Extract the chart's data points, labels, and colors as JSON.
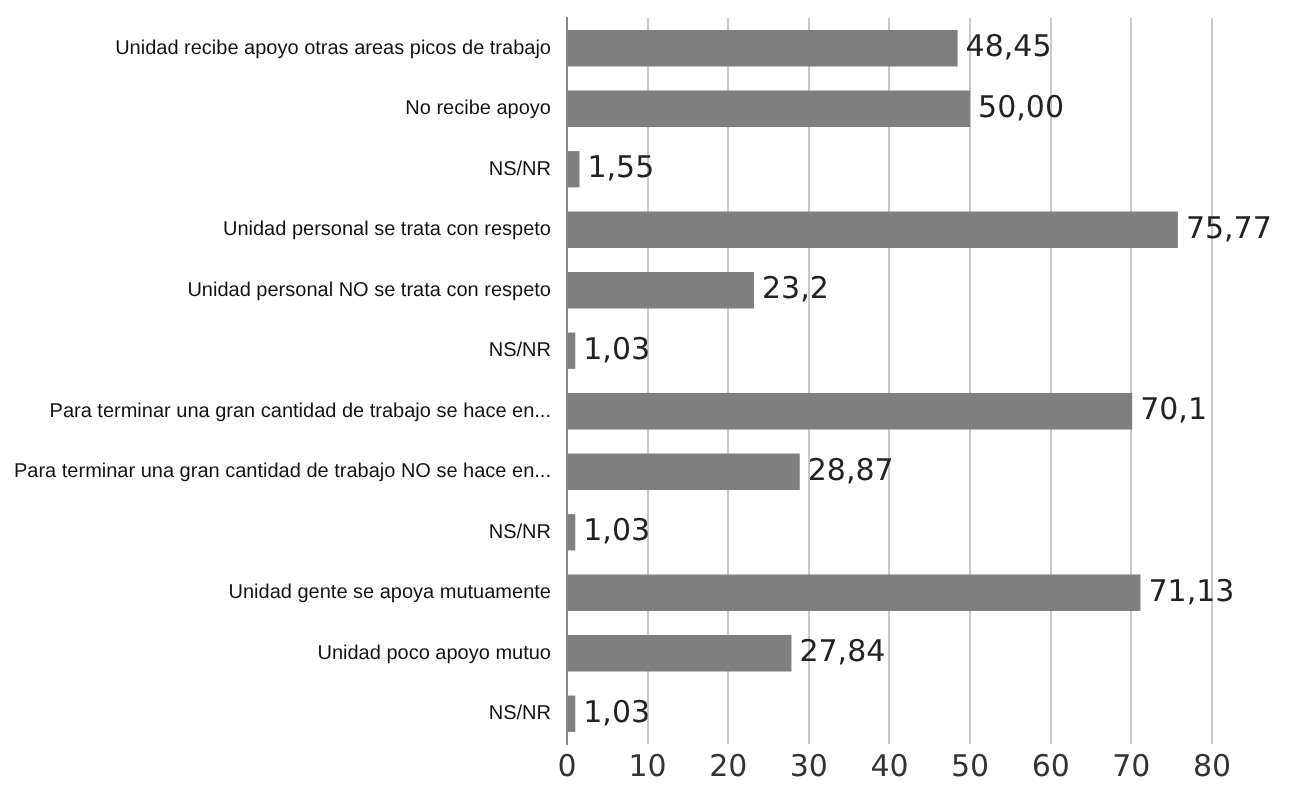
{
  "chart_data": {
    "type": "bar",
    "orientation": "horizontal",
    "categories": [
      "Unidad recibe apoyo otras areas picos de trabajo",
      "No recibe apoyo",
      "NS/NR",
      "Unidad personal se trata con respeto",
      "Unidad personal NO se trata con respeto",
      "NS/NR",
      "Para terminar una gran cantidad de trabajo se hace en...",
      "Para terminar una gran cantidad de trabajo NO se hace en...",
      "NS/NR",
      "Unidad gente se apoya mutuamente",
      "Unidad poco apoyo mutuo",
      "NS/NR"
    ],
    "values": [
      48.45,
      50.0,
      1.55,
      75.77,
      23.2,
      1.03,
      70.1,
      28.87,
      1.03,
      71.13,
      27.84,
      1.03
    ],
    "value_labels": [
      "48,45",
      "50,00",
      "1,55",
      "75,77",
      "23,2",
      "1,03",
      "70,1",
      "28,87",
      "1,03",
      "71,13",
      "27,84",
      "1,03"
    ],
    "color": "#7f7f7f",
    "xlim": [
      0,
      80
    ],
    "xticks": [
      0,
      10,
      20,
      30,
      40,
      50,
      60,
      70,
      80
    ],
    "grid": "x",
    "legend": false
  }
}
